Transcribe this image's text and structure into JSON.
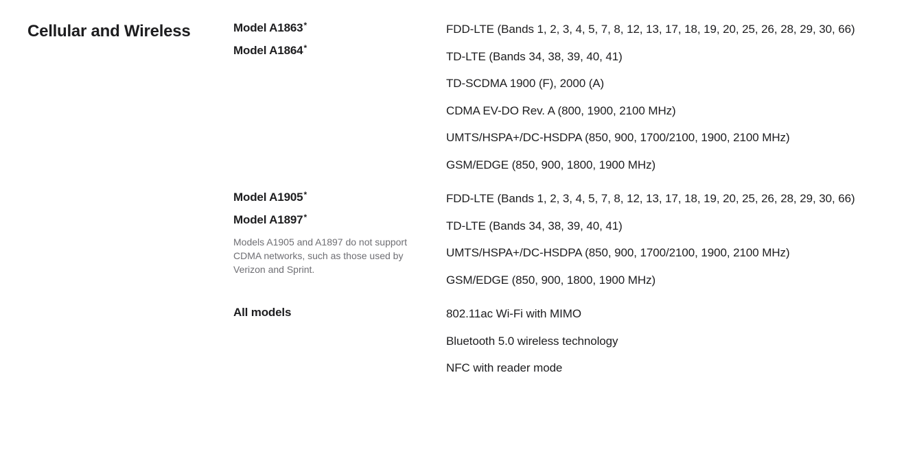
{
  "section": {
    "title": "Cellular and Wireless",
    "groups": [
      {
        "labels": [
          {
            "text": "Model A1863",
            "footnote": "*"
          },
          {
            "text": "Model A1864",
            "footnote": "*"
          }
        ],
        "note": null,
        "values": [
          "FDD-LTE (Bands 1, 2, 3, 4, 5, 7, 8, 12, 13, 17, 18, 19, 20, 25, 26, 28, 29, 30, 66)",
          "TD-LTE (Bands 34, 38, 39, 40, 41)",
          "TD-SCDMA 1900 (F), 2000 (A)",
          "CDMA EV-DO Rev. A (800, 1900, 2100 MHz)",
          "UMTS/HSPA+/DC-HSDPA (850, 900, 1700/2100, 1900, 2100 MHz)",
          "GSM/EDGE (850, 900, 1800, 1900 MHz)"
        ]
      },
      {
        "labels": [
          {
            "text": "Model A1905",
            "footnote": "*"
          },
          {
            "text": "Model A1897",
            "footnote": "*"
          }
        ],
        "note": "Models A1905 and A1897 do not support CDMA networks, such as those used by Verizon and Sprint.",
        "values": [
          "FDD-LTE (Bands 1, 2, 3, 4, 5, 7, 8, 12, 13, 17, 18, 19, 20, 25, 26, 28, 29, 30, 66)",
          "TD-LTE (Bands 34, 38, 39, 40, 41)",
          "UMTS/HSPA+/DC-HSDPA (850, 900, 1700/2100, 1900, 2100 MHz)",
          "GSM/EDGE (850, 900, 1800, 1900 MHz)"
        ]
      },
      {
        "labels": [
          {
            "text": "All models",
            "footnote": null
          }
        ],
        "note": null,
        "values": [
          "802.11ac Wi-Fi with MIMO",
          "Bluetooth 5.0 wireless technology",
          "NFC with reader mode"
        ]
      }
    ]
  },
  "colors": {
    "text_primary": "#1d1d1f",
    "text_secondary": "#6e6e73",
    "background": "#ffffff"
  },
  "typography": {
    "title_fontsize": 24,
    "label_fontsize": 17,
    "value_fontsize": 17,
    "note_fontsize": 14
  }
}
